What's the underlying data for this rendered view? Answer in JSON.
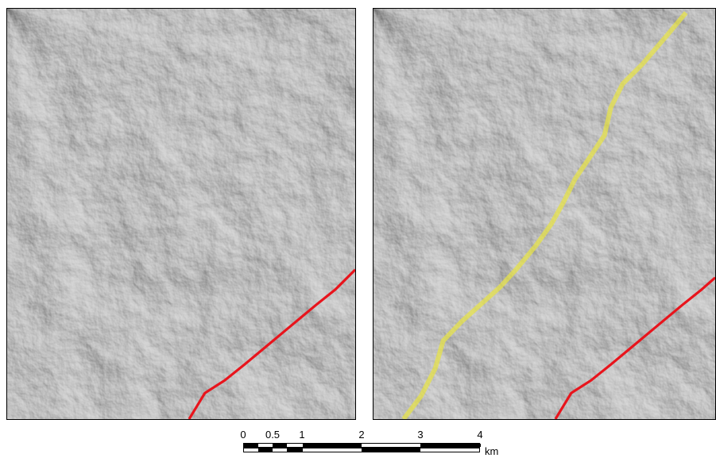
{
  "maps": {
    "left": {
      "layers": [
        "hillshade",
        "fault-line"
      ]
    },
    "right": {
      "layers": [
        "hillshade",
        "lineament",
        "fault-line"
      ]
    }
  },
  "colors": {
    "fault_line": "#e8141c",
    "lineament": "#e6e24a",
    "hillshade_base": "#8a8a8a"
  },
  "scale_bar": {
    "ticks": [
      "0",
      "0.5",
      "1",
      "2",
      "3",
      "4"
    ],
    "tick_values": [
      0,
      0.5,
      1,
      2,
      3,
      4
    ],
    "unit": "km"
  }
}
